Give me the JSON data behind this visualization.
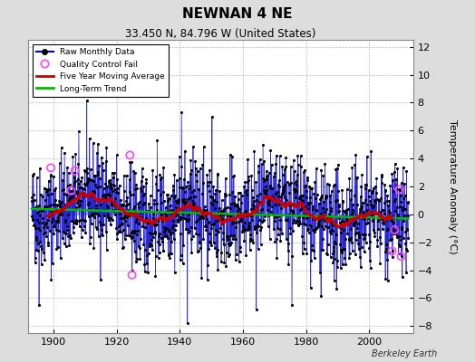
{
  "title": "NEWNAN 4 NE",
  "subtitle": "33.450 N, 84.796 W (United States)",
  "ylabel": "Temperature Anomaly (°C)",
  "credit": "Berkeley Earth",
  "xlim": [
    1892,
    2014
  ],
  "ylim": [
    -8.5,
    12.5
  ],
  "yticks": [
    -8,
    -6,
    -4,
    -2,
    0,
    2,
    4,
    6,
    8,
    10,
    12
  ],
  "xticks": [
    1900,
    1920,
    1940,
    1960,
    1980,
    2000
  ],
  "raw_color": "#0000cc",
  "stem_color": "#6666ff",
  "moving_avg_color": "#cc0000",
  "trend_color": "#00bb00",
  "qc_color": "#ff44ff",
  "bg_color": "#dddddd",
  "plot_bg_color": "#ffffff",
  "seed": 42,
  "start_year": 1893.0,
  "end_year": 2012.5,
  "noise_std": 1.8
}
